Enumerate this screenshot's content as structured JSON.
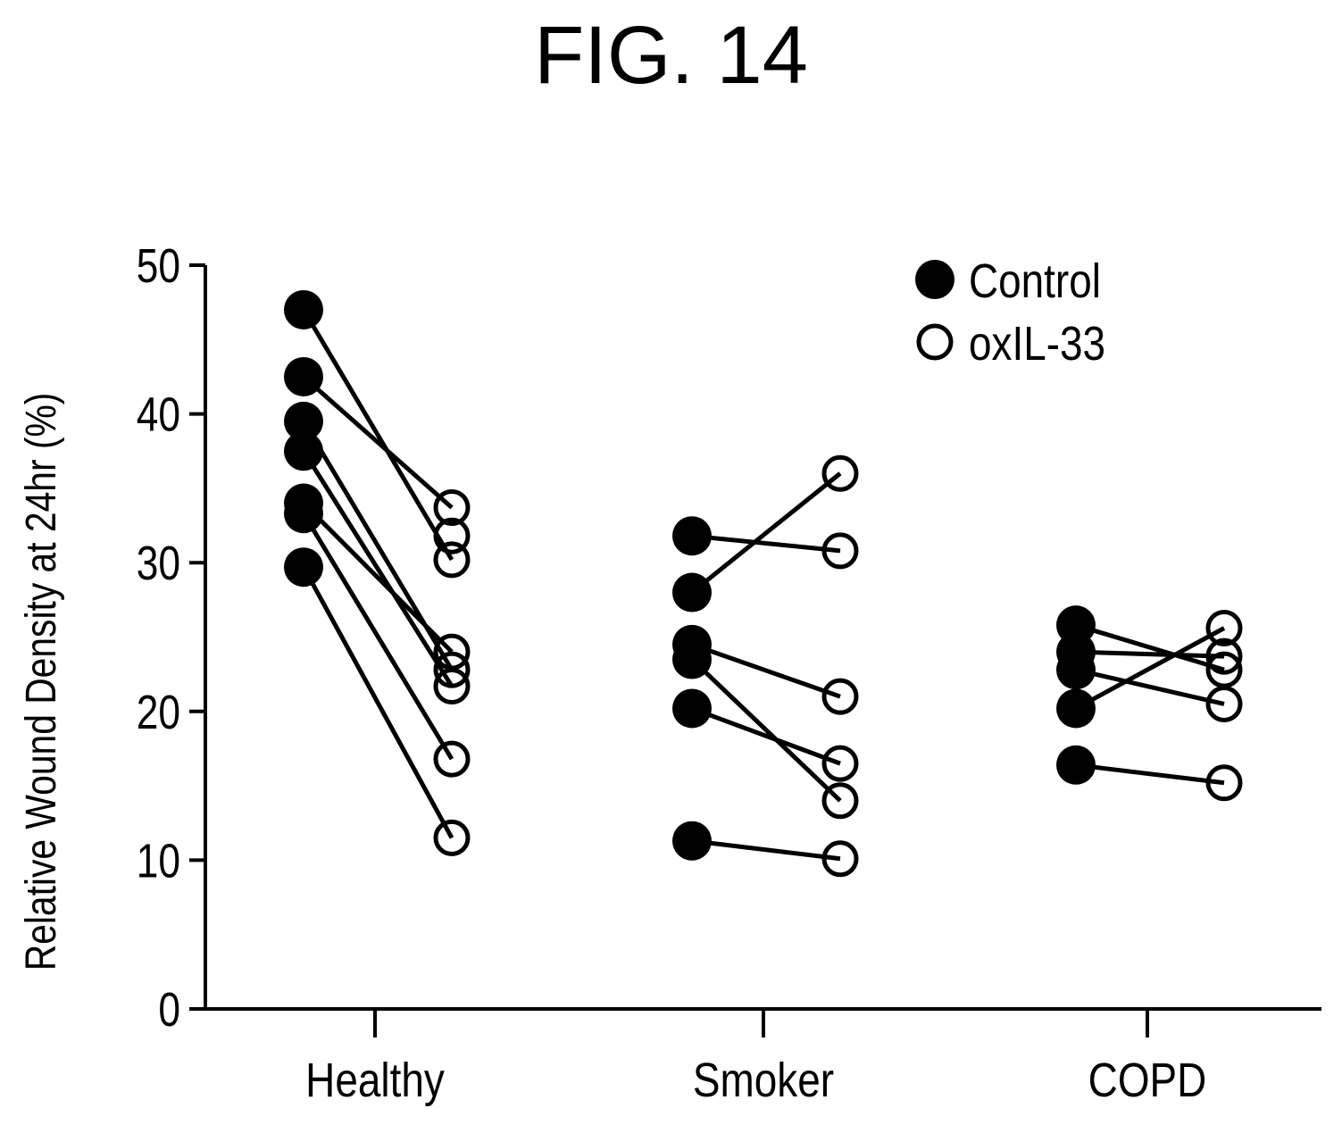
{
  "figure_label": "FIG. 14",
  "chart_data": {
    "type": "scatter",
    "subtype": "paired before-after",
    "title": "FIG. 14",
    "xlabel": "",
    "ylabel": "Relative Wound Density at 24hr (%)",
    "ylim": [
      0,
      50
    ],
    "yticks": [
      0,
      10,
      20,
      30,
      40,
      50
    ],
    "categories": [
      "Healthy",
      "Smoker",
      "COPD"
    ],
    "legend": {
      "placement": "top-right",
      "entries": [
        {
          "label": "Control",
          "marker": "filled-circle"
        },
        {
          "label": "oxIL-33",
          "marker": "open-circle"
        }
      ]
    },
    "groups": [
      {
        "category": "Healthy",
        "pairs": [
          [
            47.0,
            30.2
          ],
          [
            42.5,
            33.7
          ],
          [
            39.5,
            22.8
          ],
          [
            37.5,
            21.7
          ],
          [
            34.0,
            24.0
          ],
          [
            33.3,
            16.8
          ],
          [
            29.7,
            11.5
          ],
          [
            null,
            31.8
          ]
        ]
      },
      {
        "category": "Smoker",
        "pairs": [
          [
            31.8,
            30.8
          ],
          [
            28.0,
            36.0
          ],
          [
            24.5,
            21.0
          ],
          [
            23.5,
            14.0
          ],
          [
            20.2,
            16.5
          ],
          [
            11.3,
            10.1
          ]
        ]
      },
      {
        "category": "COPD",
        "pairs": [
          [
            25.8,
            22.8
          ],
          [
            24.0,
            23.7
          ],
          [
            22.8,
            20.5
          ],
          [
            20.2,
            25.6
          ],
          [
            16.4,
            15.2
          ]
        ]
      }
    ]
  }
}
